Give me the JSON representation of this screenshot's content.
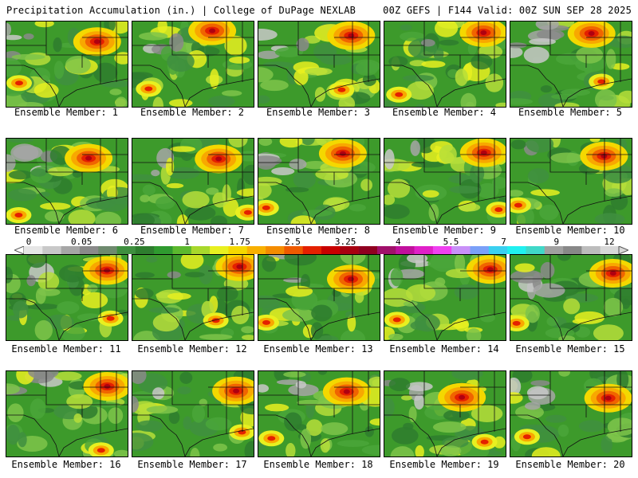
{
  "header": {
    "left": "Precipitation Accumulation (in.) | College of DuPage NEXLAB",
    "right": "00Z GEFS | F144 Valid: 00Z SUN SEP 28 2025"
  },
  "colorbar": {
    "labels": [
      "0",
      "0.05",
      "0.25",
      "1",
      "1.75",
      "2.5",
      "3.25",
      "4",
      "5.5",
      "7",
      "9",
      "12"
    ],
    "colors": [
      "#e6e6e6",
      "#c8c8c8",
      "#a6a6a6",
      "#8a8a8a",
      "#6e8a6e",
      "#3f8f3f",
      "#2e7d2e",
      "#2f9a2f",
      "#5cb82e",
      "#a8d82c",
      "#e8f020",
      "#f4d800",
      "#f8b000",
      "#f48c00",
      "#ee5a00",
      "#e42000",
      "#c80000",
      "#a80010",
      "#900020",
      "#a0106a",
      "#c0109c",
      "#e020c8",
      "#f040f0",
      "#c890f8",
      "#7aa0f8",
      "#3ad0f0",
      "#20f0f0",
      "#40d8c8",
      "#a0a0a0",
      "#888888",
      "#bcbcbc",
      "#d8d8d8"
    ]
  },
  "panels": [
    {
      "label": "Ensemble Member: 1",
      "icon": "precip-map-member-1"
    },
    {
      "label": "Ensemble Member: 2",
      "icon": "precip-map-member-2"
    },
    {
      "label": "Ensemble Member: 3",
      "icon": "precip-map-member-3"
    },
    {
      "label": "Ensemble Member: 4",
      "icon": "precip-map-member-4"
    },
    {
      "label": "Ensemble Member: 5",
      "icon": "precip-map-member-5"
    },
    {
      "label": "Ensemble Member: 6",
      "icon": "precip-map-member-6"
    },
    {
      "label": "Ensemble Member: 7",
      "icon": "precip-map-member-7"
    },
    {
      "label": "Ensemble Member: 8",
      "icon": "precip-map-member-8"
    },
    {
      "label": "Ensemble Member: 9",
      "icon": "precip-map-member-9"
    },
    {
      "label": "Ensemble Member: 10",
      "icon": "precip-map-member-10"
    },
    {
      "label": "Ensemble Member: 11",
      "icon": "precip-map-member-11"
    },
    {
      "label": "Ensemble Member: 12",
      "icon": "precip-map-member-12"
    },
    {
      "label": "Ensemble Member: 13",
      "icon": "precip-map-member-13"
    },
    {
      "label": "Ensemble Member: 14",
      "icon": "precip-map-member-14"
    },
    {
      "label": "Ensemble Member: 15",
      "icon": "precip-map-member-15"
    },
    {
      "label": "Ensemble Member: 16",
      "icon": "precip-map-member-16"
    },
    {
      "label": "Ensemble Member: 17",
      "icon": "precip-map-member-17"
    },
    {
      "label": "Ensemble Member: 18",
      "icon": "precip-map-member-18"
    },
    {
      "label": "Ensemble Member: 19",
      "icon": "precip-map-member-19"
    },
    {
      "label": "Ensemble Member: 20",
      "icon": "precip-map-member-20"
    }
  ]
}
